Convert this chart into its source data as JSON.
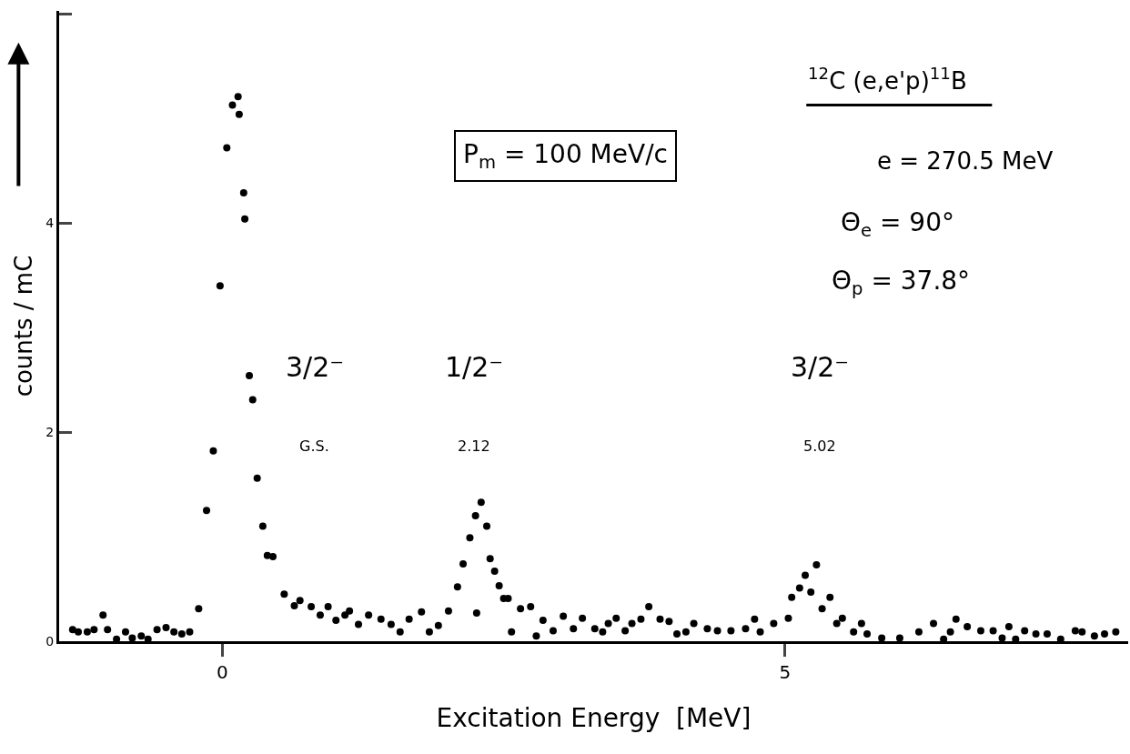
{
  "chart_data": {
    "type": "scatter",
    "xlabel": "Excitation Energy  [MeV]",
    "ylabel": "counts / mC",
    "x": [
      -1.33,
      -1.28,
      -1.2,
      -1.14,
      -1.06,
      -1.02,
      -0.94,
      -0.86,
      -0.8,
      -0.72,
      -0.66,
      -0.58,
      -0.5,
      -0.43,
      -0.36,
      -0.29,
      -0.21,
      -0.14,
      -0.08,
      -0.02,
      0.04,
      0.09,
      0.14,
      0.15,
      0.19,
      0.2,
      0.24,
      0.27,
      0.31,
      0.36,
      0.4,
      0.45,
      0.55,
      0.64,
      0.69,
      0.79,
      0.87,
      0.94,
      1.01,
      1.09,
      1.13,
      1.21,
      1.3,
      1.41,
      1.5,
      1.58,
      1.66,
      1.77,
      1.84,
      1.92,
      2.01,
      2.09,
      2.14,
      2.2,
      2.25,
      2.26,
      2.3,
      2.35,
      2.38,
      2.42,
      2.46,
      2.5,
      2.54,
      2.57,
      2.65,
      2.74,
      2.79,
      2.85,
      2.94,
      3.03,
      3.12,
      3.2,
      3.31,
      3.38,
      3.43,
      3.5,
      3.58,
      3.64,
      3.72,
      3.79,
      3.89,
      3.97,
      4.04,
      4.12,
      4.19,
      4.31,
      4.4,
      4.52,
      4.65,
      4.73,
      4.78,
      4.9,
      5.03,
      5.06,
      5.13,
      5.18,
      5.23,
      5.28,
      5.33,
      5.4,
      5.46,
      5.51,
      5.61,
      5.68,
      5.73,
      5.86,
      6.02,
      6.19,
      6.32,
      6.41,
      6.47,
      6.52,
      6.62,
      6.74,
      6.85,
      6.93,
      6.99,
      7.05,
      7.13,
      7.23,
      7.33,
      7.45,
      7.58,
      7.64,
      7.75,
      7.84,
      7.94
    ],
    "values": [
      0.11,
      0.09,
      0.09,
      0.11,
      0.25,
      0.11,
      0.02,
      0.09,
      0.03,
      0.05,
      0.02,
      0.11,
      0.13,
      0.09,
      0.07,
      0.09,
      0.31,
      1.25,
      1.82,
      3.4,
      4.72,
      5.13,
      5.21,
      5.04,
      4.29,
      4.04,
      2.54,
      2.31,
      1.56,
      1.1,
      0.82,
      0.81,
      0.45,
      0.34,
      0.39,
      0.33,
      0.25,
      0.33,
      0.2,
      0.25,
      0.29,
      0.16,
      0.25,
      0.21,
      0.16,
      0.09,
      0.21,
      0.28,
      0.09,
      0.15,
      0.29,
      0.52,
      0.74,
      0.99,
      1.2,
      0.27,
      1.33,
      1.1,
      0.79,
      0.67,
      0.53,
      0.41,
      0.41,
      0.09,
      0.31,
      0.33,
      0.05,
      0.2,
      0.1,
      0.24,
      0.12,
      0.22,
      0.12,
      0.09,
      0.17,
      0.22,
      0.1,
      0.17,
      0.21,
      0.33,
      0.21,
      0.19,
      0.07,
      0.09,
      0.17,
      0.12,
      0.1,
      0.1,
      0.12,
      0.21,
      0.09,
      0.17,
      0.22,
      0.42,
      0.51,
      0.63,
      0.47,
      0.73,
      0.31,
      0.42,
      0.17,
      0.22,
      0.09,
      0.17,
      0.07,
      0.03,
      0.03,
      0.09,
      0.17,
      0.02,
      0.09,
      0.21,
      0.14,
      0.1,
      0.1,
      0.03,
      0.14,
      0.02,
      0.1,
      0.07,
      0.07,
      0.02,
      0.1,
      0.09,
      0.05,
      0.07,
      0.09
    ],
    "color": "#000000",
    "marker": "circle",
    "xlim": [
      -1.45,
      8.05
    ],
    "xticks": [
      0,
      5
    ],
    "ylim": [
      0,
      6.03
    ],
    "yticks": [
      0,
      2,
      4,
      {
        "value": 6,
        "label": null
      }
    ],
    "annotations": [
      "P$_{m}$ = 100 MeV/c",
      "$^{12}$C (e,e'p)$^{11}$B",
      "e = 270.5 MeV",
      "Θ$_{e}$ = 90°",
      "Θ$_{p}$ = 37.8°",
      "3/2⁻",
      "G.S.",
      "1/2⁻",
      "2.12",
      "3/2⁻",
      "5.02"
    ]
  }
}
